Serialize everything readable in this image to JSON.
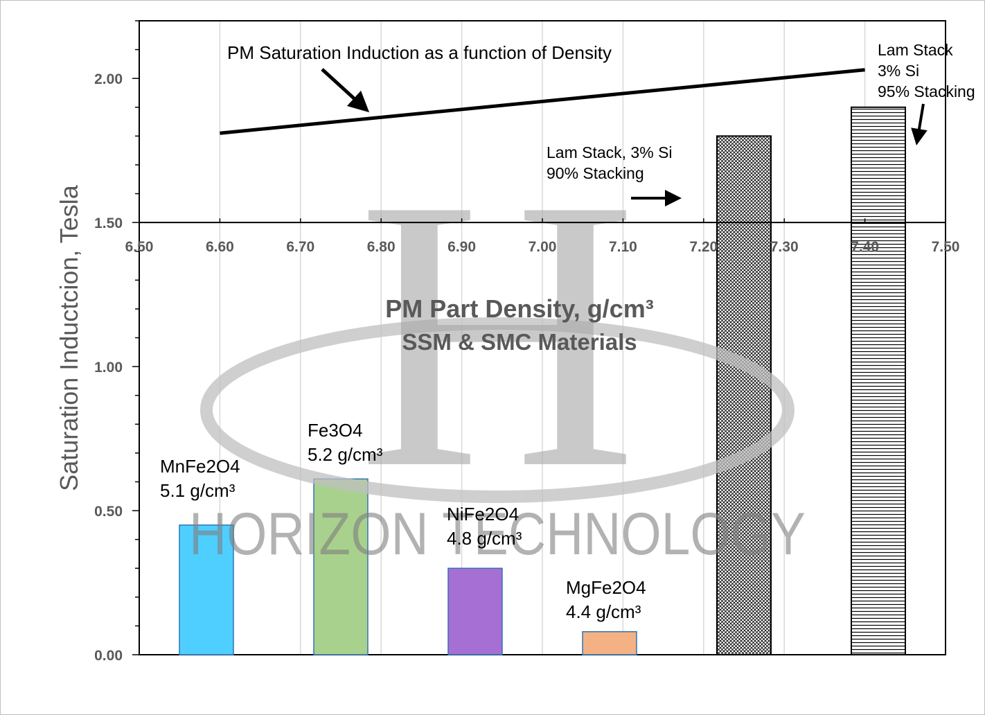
{
  "chart_data": {
    "type": "bar",
    "y_axis": {
      "label": "Saturation Inductcion, Tesla",
      "range": [
        0,
        2.2
      ],
      "ticks": [
        0.0,
        0.5,
        1.0,
        1.5,
        2.0
      ],
      "tick_labels": [
        "0.00",
        "0.50",
        "1.00",
        "1.50",
        "2.00"
      ]
    },
    "x_axis": {
      "label": "PM Part Density, g/cm³",
      "sublabel": "SSM & SMC Materials",
      "range": [
        6.5,
        7.5
      ],
      "crosses_y_at": 1.5,
      "ticks": [
        6.5,
        6.6,
        6.7,
        6.8,
        6.9,
        7.0,
        7.1,
        7.2,
        7.3,
        7.4,
        7.5
      ],
      "tick_labels": [
        "6.50",
        "6.60",
        "6.70",
        "6.80",
        "6.90",
        "7.00",
        "7.10",
        "7.20",
        "7.30",
        "7.40",
        "7.50"
      ]
    },
    "grid": "vertical",
    "bars": [
      {
        "name": "MnFe2O4",
        "sub": "5.1 g/cm³",
        "value": 0.45,
        "color": "#4fcfff",
        "stroke": "#2e75b6",
        "pattern": "solid"
      },
      {
        "name": "Fe3O4",
        "sub": "5.2 g/cm³",
        "value": 0.61,
        "color": "#a9d18e",
        "stroke": "#2e75b6",
        "pattern": "solid"
      },
      {
        "name": "NiFe2O4",
        "sub": "4.8 g/cm³",
        "value": 0.3,
        "color": "#a66fd4",
        "stroke": "#2e75b6",
        "pattern": "solid"
      },
      {
        "name": "MgFe2O4",
        "sub": "4.4 g/cm³",
        "value": 0.08,
        "color": "#f4b183",
        "stroke": "#2e75b6",
        "pattern": "solid"
      },
      {
        "name": "Lam Stack, 3% Si",
        "sub": "90% Stacking",
        "value": 1.8,
        "color": "#ffffff",
        "stroke": "#000000",
        "pattern": "crosshatch"
      },
      {
        "name": "Lam Stack",
        "sub": "3% Si",
        "sub2": "95% Stacking",
        "value": 1.9,
        "color": "#ffffff",
        "stroke": "#000000",
        "pattern": "horizontal"
      }
    ],
    "line": {
      "name": "PM Saturation Induction as a function of Density",
      "x": [
        6.6,
        7.4
      ],
      "y": [
        1.81,
        2.03
      ]
    }
  },
  "watermark": {
    "text": "HORIZON TECHNOLOGY",
    "letter": "H"
  }
}
